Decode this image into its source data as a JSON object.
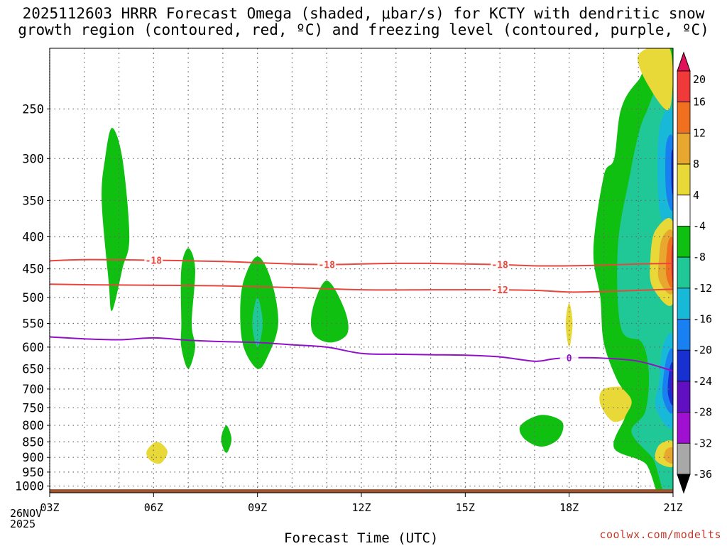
{
  "title": {
    "line1": "2025112603 HRRR Forecast Omega (shaded, μbar/s) for KCTY with dendritic snow",
    "line2": "growth region (contoured, red, ºC) and freezing level (contoured, purple, ºC)"
  },
  "credit": "coolwx.com/modelts",
  "x_axis_title": "Forecast Time (UTC)",
  "run_date": {
    "line1": "26NOV",
    "line2": "2025"
  },
  "colors": {
    "temp_contour": "#e8453c",
    "freezing_contour": "#9010c8",
    "terrain": "#a0522d",
    "grid": "#808080"
  },
  "chart_data": {
    "type": "contour",
    "station": "KCTY",
    "model": "HRRR",
    "run": "2025112603",
    "xlabel": "Forecast Time (UTC)",
    "ylabel": "Pressure (hPa)",
    "x_hours": [
      3,
      6,
      9,
      12,
      15,
      18,
      21
    ],
    "x_tick_labels": [
      "03Z",
      "06Z",
      "09Z",
      "12Z",
      "15Z",
      "18Z",
      "21Z"
    ],
    "xlim": [
      3,
      21
    ],
    "y_ticks": [
      250,
      300,
      350,
      400,
      450,
      500,
      550,
      600,
      650,
      700,
      750,
      800,
      850,
      900,
      950,
      1000
    ],
    "ylim": [
      1025,
      200
    ],
    "y_scale": "log-pressure",
    "colorbar": {
      "levels": [
        20,
        16,
        12,
        8,
        4,
        -4,
        -8,
        -12,
        -16,
        -20,
        -24,
        -28,
        -32,
        -36
      ],
      "colors": [
        "#e0105a",
        "#f03a3a",
        "#f07020",
        "#e8a830",
        "#e8d838",
        "#ffffff",
        "#10c010",
        "#20c898",
        "#18b8d8",
        "#1880f0",
        "#1830d0",
        "#6010c0",
        "#a010d0",
        "#a8a8a8",
        "#000000"
      ],
      "units": "μbar/s"
    },
    "contours": [
      {
        "name": "dendritic -18C",
        "label": "-18",
        "color": "red",
        "points": [
          [
            3,
            437
          ],
          [
            4,
            435
          ],
          [
            6,
            436
          ],
          [
            8,
            438
          ],
          [
            9,
            440
          ],
          [
            10,
            442
          ],
          [
            11,
            443
          ],
          [
            12,
            442
          ],
          [
            13,
            441
          ],
          [
            14,
            441
          ],
          [
            15,
            442
          ],
          [
            16,
            443
          ],
          [
            17,
            445
          ],
          [
            18,
            445
          ],
          [
            19,
            444
          ],
          [
            20,
            442
          ],
          [
            21,
            441
          ]
        ]
      },
      {
        "name": "dendritic -12C",
        "label": "-12",
        "color": "red",
        "points": [
          [
            3,
            476
          ],
          [
            4,
            477
          ],
          [
            6,
            478
          ],
          [
            8,
            479
          ],
          [
            10,
            482
          ],
          [
            12,
            486
          ],
          [
            14,
            486
          ],
          [
            15,
            486
          ],
          [
            16,
            486
          ],
          [
            17,
            487
          ],
          [
            18,
            490
          ],
          [
            19,
            489
          ],
          [
            20,
            487
          ],
          [
            21,
            485
          ]
        ]
      },
      {
        "name": "freezing level 0C",
        "label": "0",
        "color": "purple",
        "points": [
          [
            3,
            578
          ],
          [
            4,
            582
          ],
          [
            5,
            584
          ],
          [
            6,
            580
          ],
          [
            7,
            585
          ],
          [
            8,
            588
          ],
          [
            9,
            590
          ],
          [
            10,
            595
          ],
          [
            11,
            600
          ],
          [
            12,
            614
          ],
          [
            13,
            616
          ],
          [
            14,
            617
          ],
          [
            15,
            618
          ],
          [
            16,
            622
          ],
          [
            17,
            632
          ],
          [
            17.5,
            627
          ],
          [
            18,
            624
          ],
          [
            19,
            625
          ],
          [
            20,
            632
          ],
          [
            21,
            655
          ]
        ]
      }
    ],
    "omega_regions": [
      {
        "level": -4,
        "label": "green",
        "points": [
          [
            4.5,
            350
          ],
          [
            4.6,
            300
          ],
          [
            4.8,
            268
          ],
          [
            5.1,
            300
          ],
          [
            5.3,
            400
          ],
          [
            5.1,
            450
          ],
          [
            4.8,
            525
          ],
          [
            4.7,
            470
          ]
        ]
      },
      {
        "level": -4,
        "label": "green",
        "points": [
          [
            7.0,
            417
          ],
          [
            7.2,
            450
          ],
          [
            7.1,
            550
          ],
          [
            7.2,
            600
          ],
          [
            7.0,
            650
          ],
          [
            6.8,
            600
          ],
          [
            6.8,
            550
          ],
          [
            6.8,
            450
          ]
        ]
      },
      {
        "level": -4,
        "label": "green",
        "points": [
          [
            9.0,
            430
          ],
          [
            9.4,
            470
          ],
          [
            9.6,
            550
          ],
          [
            9.3,
            620
          ],
          [
            9.0,
            650
          ],
          [
            8.6,
            600
          ],
          [
            8.5,
            530
          ],
          [
            8.6,
            470
          ]
        ]
      },
      {
        "level": -4,
        "label": "green",
        "points": [
          [
            11.0,
            470
          ],
          [
            11.5,
            520
          ],
          [
            11.6,
            570
          ],
          [
            11.1,
            590
          ],
          [
            10.6,
            570
          ],
          [
            10.6,
            520
          ]
        ]
      },
      {
        "level": -4,
        "label": "green",
        "points": [
          [
            8.1,
            800
          ],
          [
            8.25,
            840
          ],
          [
            8.15,
            880
          ],
          [
            8.05,
            880
          ],
          [
            7.95,
            840
          ]
        ]
      },
      {
        "level": -4,
        "label": "green",
        "points": [
          [
            17.2,
            770
          ],
          [
            17.8,
            790
          ],
          [
            17.7,
            840
          ],
          [
            17.2,
            865
          ],
          [
            16.7,
            840
          ],
          [
            16.6,
            800
          ]
        ]
      },
      {
        "level": -8,
        "label": "teal",
        "points": [
          [
            9.0,
            500
          ],
          [
            9.15,
            550
          ],
          [
            9.0,
            600
          ],
          [
            8.85,
            550
          ]
        ]
      },
      {
        "level": 4,
        "label": "yellow",
        "points": [
          [
            6.1,
            850
          ],
          [
            6.4,
            880
          ],
          [
            6.2,
            920
          ],
          [
            5.9,
            910
          ],
          [
            5.8,
            880
          ]
        ]
      },
      {
        "level": 4,
        "label": "yellow",
        "points": [
          [
            18.0,
            510
          ],
          [
            18.1,
            550
          ],
          [
            18.0,
            600
          ],
          [
            17.9,
            550
          ]
        ]
      },
      {
        "level": 4,
        "label": "yellow",
        "points": [
          [
            19.0,
            700
          ],
          [
            19.7,
            700
          ],
          [
            19.8,
            760
          ],
          [
            19.3,
            790
          ],
          [
            18.9,
            740
          ]
        ]
      },
      {
        "level": -4,
        "label": "green",
        "points": [
          [
            20.0,
            225
          ],
          [
            21.0,
            200
          ],
          [
            21.0,
            1025
          ],
          [
            20.2,
            920
          ],
          [
            19.3,
            870
          ],
          [
            19.6,
            780
          ],
          [
            19.8,
            730
          ],
          [
            19.4,
            680
          ],
          [
            19.0,
            590
          ],
          [
            18.9,
            500
          ],
          [
            18.7,
            420
          ],
          [
            19.0,
            320
          ],
          [
            19.3,
            300
          ],
          [
            19.5,
            250
          ]
        ]
      },
      {
        "level": -8,
        "label": "teal",
        "points": [
          [
            20.2,
            255
          ],
          [
            21.0,
            240
          ],
          [
            21.0,
            980
          ],
          [
            20.4,
            900
          ],
          [
            19.8,
            820
          ],
          [
            20.2,
            760
          ],
          [
            20.3,
            660
          ],
          [
            20.1,
            590
          ],
          [
            19.5,
            560
          ],
          [
            19.4,
            420
          ],
          [
            19.7,
            330
          ]
        ]
      },
      {
        "level": -12,
        "label": "cyan",
        "points": [
          [
            20.6,
            270
          ],
          [
            21.0,
            255
          ],
          [
            21.0,
            390
          ],
          [
            20.6,
            360
          ]
        ]
      },
      {
        "level": -16,
        "label": "blue",
        "points": [
          [
            20.8,
            285
          ],
          [
            21.0,
            280
          ],
          [
            21.0,
            360
          ],
          [
            20.8,
            340
          ]
        ]
      },
      {
        "level": -20,
        "label": "dark-blue",
        "points": [
          [
            20.95,
            295
          ],
          [
            21.0,
            295
          ],
          [
            21.0,
            340
          ],
          [
            20.95,
            330
          ]
        ]
      },
      {
        "level": -12,
        "label": "cyan",
        "points": [
          [
            20.7,
            600
          ],
          [
            21.0,
            580
          ],
          [
            21.0,
            800
          ],
          [
            20.5,
            750
          ],
          [
            20.6,
            680
          ]
        ]
      },
      {
        "level": -16,
        "label": "blue",
        "points": [
          [
            20.8,
            630
          ],
          [
            21.0,
            610
          ],
          [
            21.0,
            760
          ],
          [
            20.7,
            720
          ]
        ]
      },
      {
        "level": -20,
        "label": "dark-blue",
        "points": [
          [
            20.9,
            650
          ],
          [
            21.0,
            640
          ],
          [
            21.0,
            740
          ],
          [
            20.85,
            710
          ]
        ]
      },
      {
        "level": -24,
        "label": "purple",
        "points": [
          [
            20.95,
            670
          ],
          [
            21.0,
            660
          ],
          [
            21.0,
            720
          ],
          [
            20.95,
            700
          ]
        ]
      },
      {
        "level": 4,
        "label": "yellow",
        "points": [
          [
            20.0,
            205
          ],
          [
            20.9,
            200
          ],
          [
            20.9,
            250
          ],
          [
            20.3,
            230
          ]
        ]
      },
      {
        "level": 4,
        "label": "yellow",
        "points": [
          [
            20.5,
            390
          ],
          [
            21.0,
            380
          ],
          [
            21.0,
            510
          ],
          [
            20.4,
            480
          ],
          [
            20.35,
            430
          ]
        ]
      },
      {
        "level": 8,
        "label": "orange",
        "points": [
          [
            20.7,
            400
          ],
          [
            21.0,
            395
          ],
          [
            21.0,
            490
          ],
          [
            20.6,
            470
          ],
          [
            20.6,
            430
          ]
        ]
      },
      {
        "level": 12,
        "label": "dark-orange",
        "points": [
          [
            20.85,
            410
          ],
          [
            21.0,
            405
          ],
          [
            21.0,
            480
          ],
          [
            20.8,
            460
          ]
        ]
      },
      {
        "level": 16,
        "label": "red",
        "points": [
          [
            20.95,
            420
          ],
          [
            21.0,
            415
          ],
          [
            21.0,
            470
          ],
          [
            20.95,
            455
          ]
        ]
      },
      {
        "level": 4,
        "label": "yellow",
        "points": [
          [
            20.6,
            860
          ],
          [
            21.0,
            850
          ],
          [
            21.0,
            930
          ],
          [
            20.5,
            910
          ]
        ]
      },
      {
        "level": 8,
        "label": "orange",
        "points": [
          [
            20.8,
            875
          ],
          [
            21.0,
            870
          ],
          [
            21.0,
            920
          ],
          [
            20.75,
            905
          ]
        ]
      }
    ],
    "terrain": {
      "top_pressure": 1012,
      "color": "brown"
    }
  }
}
